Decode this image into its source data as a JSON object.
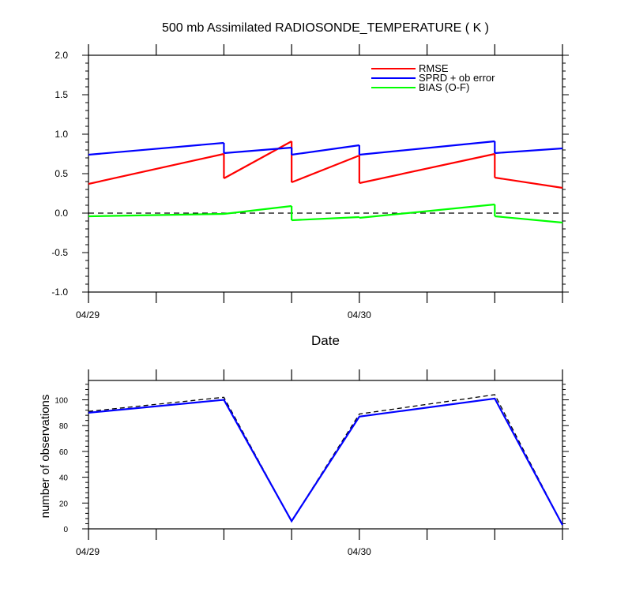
{
  "chart_data": [
    {
      "type": "line",
      "title": "500 mb Assimilated RADIOSONDE_TEMPERATURE ( K )",
      "xlabel": "Date",
      "ylabel": "",
      "x_tick_labels": [
        "04/29",
        "04/30"
      ],
      "x_tick_positions_hours": [
        0,
        24
      ],
      "x_range_hours": [
        0,
        42
      ],
      "ylim": [
        -1.0,
        2.0
      ],
      "y_tick_labels": [
        "-1.0",
        "-0.5",
        "0.0",
        "0.5",
        "1.0",
        "1.5",
        "2.0"
      ],
      "zero_reference_line": 0,
      "legend_position": "top-right",
      "series": [
        {
          "name": "RMSE",
          "color": "#ff0000",
          "segments": [
            [
              [
                0,
                0.37
              ],
              [
                12,
                0.75
              ]
            ],
            [
              [
                12,
                0.44
              ],
              [
                18,
                0.91
              ]
            ],
            [
              [
                18,
                0.39
              ],
              [
                24,
                0.73
              ]
            ],
            [
              [
                24,
                0.38
              ],
              [
                36,
                0.75
              ]
            ],
            [
              [
                36,
                0.45
              ],
              [
                42,
                0.32
              ]
            ]
          ]
        },
        {
          "name": "SPRD + ob error",
          "color": "#0000ff",
          "segments": [
            [
              [
                0,
                0.74
              ],
              [
                12,
                0.89
              ]
            ],
            [
              [
                12,
                0.76
              ],
              [
                18,
                0.83
              ]
            ],
            [
              [
                18,
                0.74
              ],
              [
                24,
                0.86
              ]
            ],
            [
              [
                24,
                0.74
              ],
              [
                36,
                0.91
              ]
            ],
            [
              [
                36,
                0.76
              ],
              [
                42,
                0.82
              ]
            ]
          ]
        },
        {
          "name": "BIAS (O-F)",
          "color": "#00ff00",
          "segments": [
            [
              [
                0,
                -0.04
              ],
              [
                12,
                -0.01
              ]
            ],
            [
              [
                12,
                -0.01
              ],
              [
                18,
                0.09
              ]
            ],
            [
              [
                18,
                -0.09
              ],
              [
                24,
                -0.05
              ]
            ],
            [
              [
                24,
                -0.06
              ],
              [
                36,
                0.11
              ]
            ],
            [
              [
                36,
                -0.04
              ],
              [
                42,
                -0.12
              ]
            ]
          ]
        }
      ]
    },
    {
      "type": "line",
      "title": "",
      "xlabel": "",
      "ylabel": "number of observations",
      "x_tick_labels": [
        "04/29",
        "04/30"
      ],
      "x_tick_positions_hours": [
        0,
        24
      ],
      "x_range_hours": [
        0,
        42
      ],
      "ylim": [
        0,
        115
      ],
      "y_tick_labels": [
        "0",
        "20",
        "40",
        "60",
        "80",
        "100"
      ],
      "series": [
        {
          "name": "",
          "style": "dashed",
          "color": "#000000",
          "x": [
            0,
            12,
            18,
            24,
            36,
            42
          ],
          "values": [
            91,
            102,
            6,
            89,
            104,
            3
          ]
        },
        {
          "name": "",
          "style": "solid",
          "color": "#0000ff",
          "x": [
            0,
            12,
            18,
            24,
            36,
            42
          ],
          "values": [
            90,
            100,
            6,
            87,
            101,
            3
          ]
        }
      ]
    }
  ]
}
